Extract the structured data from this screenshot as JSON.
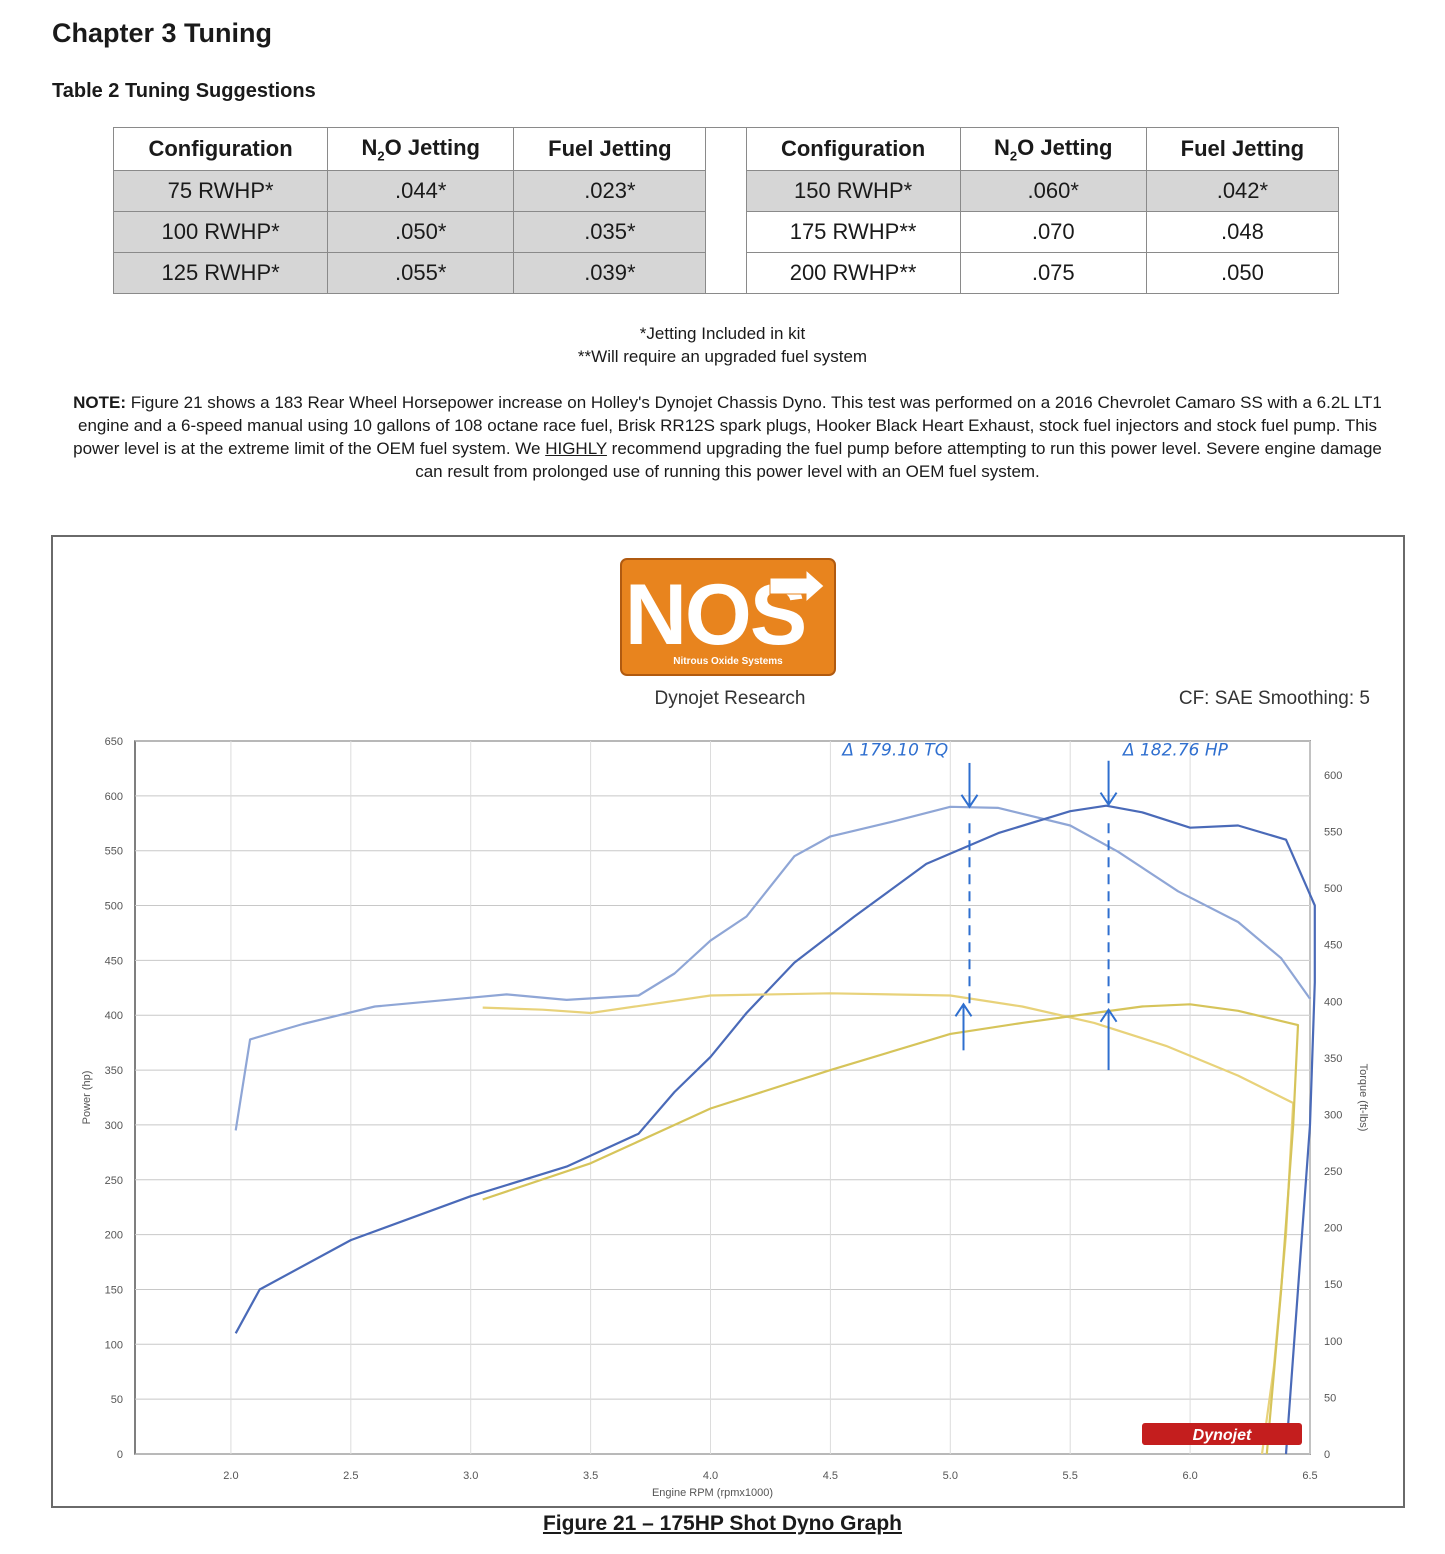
{
  "chapter_title": "Chapter 3 Tuning",
  "table_title": "Table 2 Tuning Suggestions",
  "table": {
    "headers": [
      "Configuration",
      "N2O Jetting",
      "Fuel Jetting",
      "Configuration",
      "N2O Jetting",
      "Fuel Jetting"
    ],
    "left_rows": [
      {
        "config": "75 RWHP*",
        "n2o": ".044*",
        "fuel": ".023*"
      },
      {
        "config": "100 RWHP*",
        "n2o": ".050*",
        "fuel": ".035*"
      },
      {
        "config": "125 RWHP*",
        "n2o": ".055*",
        "fuel": ".039*"
      }
    ],
    "right_rows": [
      {
        "config": "150 RWHP*",
        "n2o": ".060*",
        "fuel": ".042*"
      },
      {
        "config": "175 RWHP**",
        "n2o": ".070",
        "fuel": ".048"
      },
      {
        "config": "200 RWHP**",
        "n2o": ".075",
        "fuel": ".050"
      }
    ]
  },
  "footnotes": [
    "*Jetting Included in kit",
    "**Will require an upgraded fuel system"
  ],
  "note": {
    "label": "NOTE:",
    "text_before": "Figure 21 shows a 183 Rear Wheel Horsepower increase on Holley's Dynojet Chassis Dyno. This test was performed on a 2016 Chevrolet Camaro SS with a 6.2L LT1 engine and a 6-speed manual using 10 gallons of 108 octane race fuel, Brisk RR12S spark plugs, Hooker Black Heart Exhaust, stock fuel injectors and stock fuel pump. This power level is at the extreme limit of the OEM fuel system. We",
    "emphasis": "HIGHLY",
    "text_after": "recommend upgrading the fuel pump before attempting to run this power level. Severe engine damage can result from prolonged use of running this power level with an OEM fuel system."
  },
  "logo": {
    "text": "NOS",
    "subtext": "Nitrous Oxide Systems",
    "color": "#e8841e"
  },
  "figure": {
    "subtitle": "Dynojet Research",
    "settings": "CF: SAE Smoothing: 5",
    "caption": "Figure 21 – 175HP Shot Dyno Graph"
  },
  "chart_data": {
    "type": "line",
    "xlabel": "Engine RPM (rpmx1000)",
    "ylabel_left": "Power (hp)",
    "ylabel_right": "Torque (ft-lbs)",
    "xlim": [
      1.6,
      6.5
    ],
    "ylim_left": [
      0,
      650
    ],
    "ylim_right": [
      0,
      630
    ],
    "x_ticks": [
      "2.0",
      "2.5",
      "3.0",
      "3.5",
      "4.0",
      "4.5",
      "5.0",
      "5.5",
      "6.0",
      "6.5"
    ],
    "y_ticks_left": [
      "0",
      "50",
      "100",
      "150",
      "200",
      "250",
      "300",
      "350",
      "400",
      "450",
      "500",
      "550",
      "600",
      "650"
    ],
    "y_ticks_right": [
      "0",
      "50",
      "100",
      "150",
      "200",
      "250",
      "300",
      "350",
      "400",
      "450",
      "500",
      "550",
      "600"
    ],
    "grid": true,
    "series": [
      {
        "color": "#8fa6d6",
        "points": [
          [
            2.02,
            295
          ],
          [
            2.08,
            378
          ],
          [
            2.3,
            392
          ],
          [
            2.6,
            408
          ],
          [
            3.0,
            416
          ],
          [
            3.15,
            419
          ],
          [
            3.4,
            414
          ],
          [
            3.7,
            418
          ],
          [
            3.85,
            438
          ],
          [
            4.0,
            468
          ],
          [
            4.15,
            490
          ],
          [
            4.35,
            545
          ],
          [
            4.5,
            563
          ],
          [
            4.75,
            576
          ],
          [
            5.0,
            590
          ],
          [
            5.2,
            589
          ],
          [
            5.5,
            573
          ],
          [
            5.7,
            549
          ],
          [
            5.95,
            513
          ],
          [
            6.2,
            485
          ],
          [
            6.38,
            452
          ],
          [
            6.5,
            415
          ]
        ]
      },
      {
        "color": "#4a6ab8",
        "points": [
          [
            2.02,
            110
          ],
          [
            2.12,
            150
          ],
          [
            2.5,
            195
          ],
          [
            3.0,
            235
          ],
          [
            3.4,
            262
          ],
          [
            3.7,
            292
          ],
          [
            3.85,
            330
          ],
          [
            4.0,
            362
          ],
          [
            4.15,
            402
          ],
          [
            4.35,
            448
          ],
          [
            4.6,
            490
          ],
          [
            4.9,
            538
          ],
          [
            5.2,
            566
          ],
          [
            5.5,
            586
          ],
          [
            5.65,
            591
          ],
          [
            5.8,
            585
          ],
          [
            6.0,
            571
          ],
          [
            6.2,
            573
          ],
          [
            6.4,
            560
          ],
          [
            6.52,
            500
          ],
          [
            6.52,
            430
          ],
          [
            6.5,
            300
          ],
          [
            6.45,
            150
          ],
          [
            6.4,
            0
          ]
        ]
      },
      {
        "color": "#e8d27a",
        "points": [
          [
            3.05,
            407
          ],
          [
            3.3,
            405
          ],
          [
            3.5,
            402
          ],
          [
            3.75,
            410
          ],
          [
            4.0,
            418
          ],
          [
            4.5,
            420
          ],
          [
            5.0,
            418
          ],
          [
            5.3,
            408
          ],
          [
            5.6,
            393
          ],
          [
            5.9,
            372
          ],
          [
            6.2,
            345
          ],
          [
            6.43,
            320
          ],
          [
            6.4,
            200
          ],
          [
            6.35,
            80
          ],
          [
            6.3,
            0
          ]
        ]
      },
      {
        "color": "#d6c45a",
        "points": [
          [
            3.05,
            232
          ],
          [
            3.5,
            265
          ],
          [
            3.8,
            295
          ],
          [
            4.0,
            315
          ],
          [
            4.5,
            350
          ],
          [
            5.0,
            383
          ],
          [
            5.3,
            393
          ],
          [
            5.6,
            402
          ],
          [
            5.8,
            408
          ],
          [
            6.0,
            410
          ],
          [
            6.2,
            404
          ],
          [
            6.45,
            391
          ],
          [
            6.43,
            300
          ],
          [
            6.38,
            150
          ],
          [
            6.32,
            0
          ]
        ]
      }
    ],
    "annotations": [
      "Δ 179.10 TQ",
      "Δ 182.76 HP"
    ],
    "watermark": "Dynojet"
  }
}
